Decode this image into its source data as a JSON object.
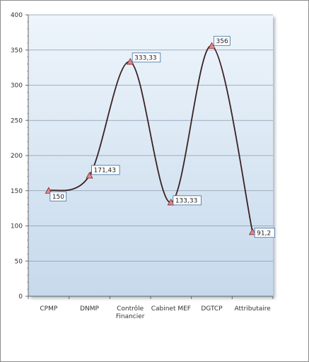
{
  "chart_data": {
    "type": "line",
    "smooth": true,
    "categories": [
      "CPMP",
      "DNMP",
      "Contrôle Financier",
      "Cabinet MEF",
      "DGTCP",
      "Attributaire"
    ],
    "category_lines": [
      [
        "CPMP"
      ],
      [
        "DNMP"
      ],
      [
        "Contrôle",
        "Financier"
      ],
      [
        "Cabinet MEF"
      ],
      [
        "DGTCP"
      ],
      [
        "Attributaire"
      ]
    ],
    "values": [
      150,
      171.43,
      333.33,
      133.33,
      356,
      91.2
    ],
    "data_labels": [
      "150",
      "171,43",
      "333,33",
      "133,33",
      "356",
      "91,2"
    ],
    "ylim": [
      0,
      400
    ],
    "yticks": [
      0,
      50,
      100,
      150,
      200,
      250,
      300,
      350,
      400
    ],
    "grid": true,
    "legend": "none",
    "title": "",
    "xlabel": "",
    "ylabel": "",
    "colors": {
      "line": "#3a2222",
      "marker_fill": "#d98b8b",
      "marker_stroke": "#8b2020",
      "gridline": "#8a9ab0",
      "plot_bg_top": "#eef5fb",
      "plot_bg_bottom": "#c6d9ec",
      "label_border": "#3a6fa0"
    }
  }
}
